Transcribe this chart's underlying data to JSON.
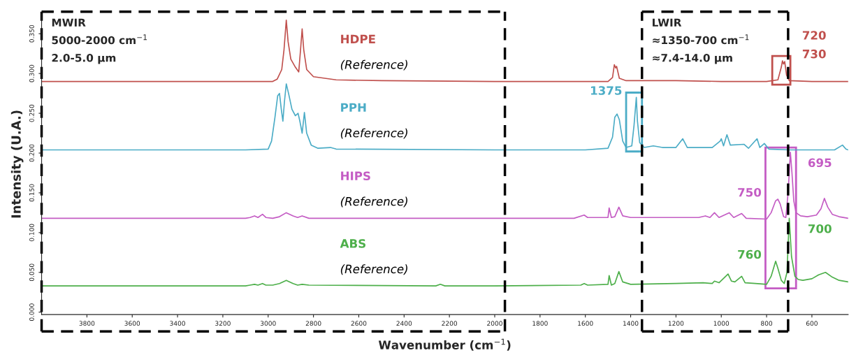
{
  "chart_data": {
    "type": "line",
    "xlabel": "Wavenumber (cm$^{−1}$)",
    "ylabel": "Intensity (U.A.)",
    "xlim": [
      4000,
      440
    ],
    "ylim": [
      -0.003,
      0.375
    ],
    "xticks": [
      3800,
      3600,
      3400,
      3200,
      3000,
      2800,
      2600,
      2400,
      2200,
      2000,
      1800,
      1600,
      1400,
      1200,
      1000,
      800,
      600
    ],
    "yticks": [
      {
        "value": 0,
        "label": "0.000"
      },
      {
        "value": 0.05,
        "label": "0.050"
      },
      {
        "value": 0.1,
        "label": "0.100"
      },
      {
        "value": 0.15,
        "label": "0.150"
      },
      {
        "value": 0.2,
        "label": "0.200"
      },
      {
        "value": 0.25,
        "label": "0.250"
      },
      {
        "value": 0.3,
        "label": "0.300"
      },
      {
        "value": 0.35,
        "label": "0.350"
      }
    ],
    "grid": false,
    "legend": false,
    "marker": "none",
    "line_style": "solid",
    "series": [
      {
        "name": "HDPE\n(Reference)",
        "color": "#c0504d",
        "x": [
          4000,
          3000,
          2980,
          2960,
          2940,
          2930,
          2920,
          2912,
          2900,
          2880,
          2865,
          2857,
          2850,
          2843,
          2830,
          2800,
          2700,
          2500,
          2000,
          1500,
          1480,
          1472,
          1466,
          1462,
          1450,
          1420,
          1200,
          1000,
          800,
          750,
          735,
          730,
          725,
          720,
          712,
          700,
          600,
          440
        ],
        "values": [
          0.29,
          0.29,
          0.29,
          0.293,
          0.305,
          0.33,
          0.367,
          0.34,
          0.318,
          0.308,
          0.302,
          0.33,
          0.356,
          0.33,
          0.305,
          0.296,
          0.292,
          0.291,
          0.29,
          0.29,
          0.295,
          0.311,
          0.307,
          0.309,
          0.294,
          0.291,
          0.291,
          0.29,
          0.29,
          0.292,
          0.308,
          0.316,
          0.312,
          0.315,
          0.298,
          0.291,
          0.29,
          0.29
        ]
      },
      {
        "name": "PPH\n(Reference)",
        "color": "#4bacc6",
        "x": [
          4000,
          3100,
          3000,
          2985,
          2970,
          2958,
          2950,
          2942,
          2935,
          2928,
          2920,
          2910,
          2895,
          2880,
          2868,
          2860,
          2850,
          2840,
          2830,
          2810,
          2780,
          2725,
          2700,
          2000,
          1600,
          1500,
          1480,
          1470,
          1460,
          1450,
          1435,
          1420,
          1395,
          1385,
          1375,
          1370,
          1360,
          1340,
          1300,
          1260,
          1200,
          1170,
          1150,
          1100,
          1040,
          1005,
          1000,
          990,
          975,
          960,
          900,
          880,
          842,
          830,
          810,
          790,
          700,
          500,
          465,
          450,
          440
        ],
        "values": [
          0.204,
          0.204,
          0.205,
          0.215,
          0.245,
          0.272,
          0.275,
          0.255,
          0.24,
          0.265,
          0.287,
          0.275,
          0.255,
          0.247,
          0.25,
          0.24,
          0.225,
          0.251,
          0.225,
          0.21,
          0.206,
          0.207,
          0.205,
          0.204,
          0.204,
          0.206,
          0.22,
          0.245,
          0.249,
          0.242,
          0.215,
          0.207,
          0.209,
          0.235,
          0.27,
          0.24,
          0.213,
          0.207,
          0.209,
          0.207,
          0.207,
          0.218,
          0.207,
          0.207,
          0.207,
          0.215,
          0.218,
          0.209,
          0.223,
          0.21,
          0.211,
          0.206,
          0.218,
          0.207,
          0.212,
          0.205,
          0.204,
          0.204,
          0.21,
          0.205,
          0.204
        ]
      },
      {
        "name": "HIPS\n(Reference)",
        "color": "#c45cc4",
        "x": [
          4000,
          3100,
          3080,
          3060,
          3045,
          3025,
          3010,
          2980,
          2950,
          2920,
          2890,
          2870,
          2850,
          2820,
          2000,
          1650,
          1605,
          1590,
          1500,
          1495,
          1485,
          1470,
          1452,
          1435,
          1400,
          1300,
          1100,
          1070,
          1050,
          1030,
          1010,
          965,
          945,
          910,
          890,
          800,
          780,
          760,
          750,
          740,
          725,
          715,
          705,
          695,
          688,
          680,
          670,
          650,
          620,
          580,
          560,
          545,
          530,
          510,
          480,
          440
        ],
        "values": [
          0.118,
          0.118,
          0.119,
          0.121,
          0.119,
          0.123,
          0.119,
          0.118,
          0.12,
          0.125,
          0.121,
          0.119,
          0.121,
          0.118,
          0.118,
          0.118,
          0.122,
          0.119,
          0.119,
          0.131,
          0.119,
          0.12,
          0.132,
          0.121,
          0.119,
          0.119,
          0.119,
          0.121,
          0.119,
          0.125,
          0.119,
          0.125,
          0.119,
          0.124,
          0.118,
          0.117,
          0.125,
          0.14,
          0.142,
          0.136,
          0.12,
          0.119,
          0.15,
          0.201,
          0.175,
          0.14,
          0.125,
          0.121,
          0.12,
          0.122,
          0.13,
          0.143,
          0.132,
          0.123,
          0.12,
          0.118
        ]
      },
      {
        "name": "ABS\n(Reference)",
        "color": "#4daf4a",
        "x": [
          4000,
          3100,
          3080,
          3060,
          3045,
          3025,
          3010,
          2980,
          2950,
          2920,
          2890,
          2870,
          2850,
          2820,
          2260,
          2240,
          2220,
          2000,
          1620,
          1605,
          1590,
          1500,
          1495,
          1485,
          1470,
          1452,
          1435,
          1400,
          1200,
          1080,
          1040,
          1030,
          1010,
          970,
          955,
          940,
          910,
          895,
          850,
          800,
          780,
          760,
          750,
          735,
          722,
          710,
          700,
          690,
          675,
          660,
          640,
          600,
          570,
          540,
          510,
          480,
          440
        ],
        "values": [
          0.033,
          0.033,
          0.034,
          0.035,
          0.034,
          0.036,
          0.034,
          0.034,
          0.036,
          0.04,
          0.036,
          0.034,
          0.035,
          0.034,
          0.033,
          0.035,
          0.033,
          0.033,
          0.034,
          0.036,
          0.034,
          0.035,
          0.046,
          0.034,
          0.036,
          0.051,
          0.038,
          0.035,
          0.036,
          0.037,
          0.036,
          0.039,
          0.037,
          0.048,
          0.039,
          0.038,
          0.045,
          0.037,
          0.036,
          0.035,
          0.045,
          0.064,
          0.055,
          0.04,
          0.036,
          0.05,
          0.118,
          0.07,
          0.045,
          0.041,
          0.04,
          0.042,
          0.047,
          0.05,
          0.044,
          0.04,
          0.038
        ]
      }
    ],
    "ref_lines": [
      {
        "axis": "x",
        "value": 4000,
        "label": "MWIR\n5000-2000 cm$^{−1}$\n2.0-5.0 µm",
        "color": "#000000",
        "line_style": "dashed"
      },
      {
        "axis": "x",
        "value": 1955,
        "color": "#000000",
        "line_style": "dashed"
      },
      {
        "axis": "x",
        "value": 1350,
        "label": "LWIR\n≈1350-700 cm$^{−1}$\n≈7.4-14.0 µm",
        "color": "#000000",
        "line_style": "dashed"
      },
      {
        "axis": "x",
        "value": 705,
        "color": "#000000",
        "line_style": "dashed"
      }
    ],
    "annotations": [
      {
        "text": "720",
        "x": 720,
        "y": 0.315
      },
      {
        "text": "730",
        "x": 730,
        "y": 0.316
      },
      {
        "text": "1375",
        "x": 1375,
        "y": 0.27
      },
      {
        "text": "750",
        "x": 750,
        "y": 0.142
      },
      {
        "text": "695",
        "x": 695,
        "y": 0.201
      },
      {
        "text": "760",
        "x": 760,
        "y": 0.064
      },
      {
        "text": "700",
        "x": 700,
        "y": 0.118
      }
    ]
  }
}
